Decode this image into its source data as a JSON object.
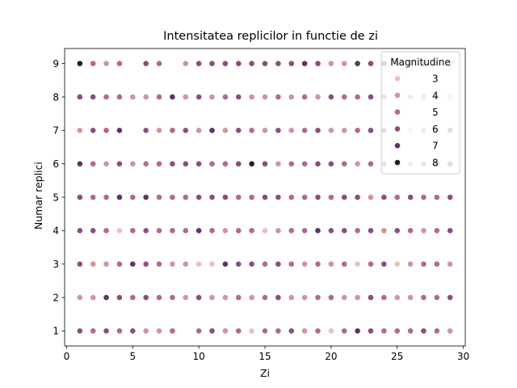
{
  "chart_data": {
    "type": "scatter",
    "title": "Intensitatea replicilor in functie de zi",
    "xlabel": "Zi",
    "ylabel": "Numar replici",
    "xlim": [
      -0.15,
      30.15
    ],
    "ylim": [
      0.55,
      9.45
    ],
    "xticks": [
      0,
      5,
      10,
      15,
      20,
      25,
      30
    ],
    "yticks": [
      1,
      2,
      3,
      4,
      5,
      6,
      7,
      8,
      9
    ],
    "grid": false,
    "legend": {
      "title": "Magnitudine",
      "placement": "top-right",
      "entries": [
        {
          "label": "3",
          "color": "#e8c1c3"
        },
        {
          "label": "4",
          "color": "#d1949f"
        },
        {
          "label": "5",
          "color": "#b4688c"
        },
        {
          "label": "6",
          "color": "#8a4e7e"
        },
        {
          "label": "7",
          "color": "#5d3563"
        },
        {
          "label": "8",
          "color": "#2a1a30"
        }
      ]
    },
    "series": [
      {
        "y": 9,
        "points": [
          [
            1,
            8
          ],
          [
            2,
            5
          ],
          [
            3,
            4
          ],
          [
            4,
            5
          ],
          [
            6,
            6
          ],
          [
            7,
            5
          ],
          [
            9,
            4
          ],
          [
            10,
            6
          ],
          [
            11,
            6
          ],
          [
            12,
            6
          ],
          [
            13,
            6
          ],
          [
            14,
            6
          ],
          [
            15,
            6
          ],
          [
            16,
            6
          ],
          [
            17,
            6
          ],
          [
            18,
            7
          ],
          [
            19,
            6
          ],
          [
            20,
            4
          ],
          [
            21,
            4
          ],
          [
            22,
            7
          ],
          [
            23,
            6
          ],
          [
            24,
            7
          ],
          [
            25,
            6
          ],
          [
            26,
            4
          ],
          [
            27,
            6
          ],
          [
            28,
            4
          ],
          [
            29,
            4
          ]
        ]
      },
      {
        "y": 8,
        "points": [
          [
            1,
            6
          ],
          [
            2,
            6
          ],
          [
            3,
            5
          ],
          [
            4,
            5
          ],
          [
            5,
            4
          ],
          [
            6,
            4
          ],
          [
            7,
            5
          ],
          [
            8,
            7
          ],
          [
            9,
            4
          ],
          [
            10,
            6
          ],
          [
            11,
            4
          ],
          [
            12,
            5
          ],
          [
            13,
            6
          ],
          [
            14,
            4
          ],
          [
            15,
            4
          ],
          [
            16,
            5
          ],
          [
            17,
            4
          ],
          [
            18,
            5
          ],
          [
            19,
            4
          ],
          [
            20,
            6
          ],
          [
            21,
            5
          ],
          [
            22,
            5
          ],
          [
            23,
            6
          ],
          [
            24,
            5
          ],
          [
            25,
            4
          ],
          [
            26,
            4
          ],
          [
            27,
            4
          ],
          [
            28,
            4
          ],
          [
            29,
            3
          ]
        ]
      },
      {
        "y": 7,
        "points": [
          [
            1,
            4
          ],
          [
            2,
            6
          ],
          [
            3,
            5
          ],
          [
            4,
            7
          ],
          [
            6,
            6
          ],
          [
            7,
            4
          ],
          [
            8,
            5
          ],
          [
            9,
            6
          ],
          [
            10,
            4
          ],
          [
            11,
            7
          ],
          [
            12,
            4
          ],
          [
            13,
            6
          ],
          [
            14,
            5
          ],
          [
            15,
            4
          ],
          [
            16,
            6
          ],
          [
            17,
            4
          ],
          [
            18,
            5
          ],
          [
            19,
            6
          ],
          [
            20,
            4
          ],
          [
            21,
            4
          ],
          [
            22,
            5
          ],
          [
            23,
            6
          ],
          [
            24,
            6
          ],
          [
            25,
            3
          ],
          [
            26,
            3
          ],
          [
            27,
            4
          ],
          [
            28,
            4
          ],
          [
            29,
            6
          ]
        ]
      },
      {
        "y": 6,
        "points": [
          [
            1,
            7
          ],
          [
            2,
            5
          ],
          [
            3,
            4
          ],
          [
            4,
            6
          ],
          [
            5,
            4
          ],
          [
            6,
            5
          ],
          [
            7,
            5
          ],
          [
            8,
            6
          ],
          [
            9,
            6
          ],
          [
            10,
            6
          ],
          [
            11,
            5
          ],
          [
            12,
            5
          ],
          [
            13,
            6
          ],
          [
            14,
            8
          ],
          [
            15,
            6
          ],
          [
            16,
            4
          ],
          [
            17,
            5
          ],
          [
            18,
            5
          ],
          [
            19,
            6
          ],
          [
            20,
            6
          ],
          [
            21,
            5
          ],
          [
            22,
            4
          ],
          [
            23,
            5
          ],
          [
            24,
            5
          ],
          [
            25,
            6
          ],
          [
            26,
            4
          ],
          [
            27,
            5
          ],
          [
            28,
            6
          ],
          [
            29,
            6
          ]
        ]
      },
      {
        "y": 5,
        "points": [
          [
            1,
            6
          ],
          [
            2,
            5
          ],
          [
            3,
            5
          ],
          [
            4,
            7
          ],
          [
            5,
            5
          ],
          [
            6,
            7
          ],
          [
            7,
            5
          ],
          [
            8,
            5
          ],
          [
            9,
            5
          ],
          [
            10,
            6
          ],
          [
            11,
            6
          ],
          [
            12,
            6
          ],
          [
            13,
            5
          ],
          [
            14,
            5
          ],
          [
            15,
            6
          ],
          [
            16,
            6
          ],
          [
            17,
            5
          ],
          [
            18,
            5
          ],
          [
            19,
            6
          ],
          [
            20,
            5
          ],
          [
            21,
            6
          ],
          [
            22,
            6
          ],
          [
            23,
            4
          ],
          [
            24,
            6
          ],
          [
            25,
            5
          ],
          [
            26,
            6
          ],
          [
            27,
            5
          ],
          [
            28,
            5
          ],
          [
            29,
            6
          ]
        ]
      },
      {
        "y": 4,
        "points": [
          [
            1,
            6
          ],
          [
            2,
            6
          ],
          [
            3,
            5
          ],
          [
            4,
            3
          ],
          [
            5,
            5
          ],
          [
            6,
            6
          ],
          [
            7,
            5
          ],
          [
            8,
            5
          ],
          [
            9,
            5
          ],
          [
            10,
            7
          ],
          [
            11,
            5
          ],
          [
            12,
            4
          ],
          [
            13,
            5
          ],
          [
            14,
            5
          ],
          [
            15,
            3
          ],
          [
            16,
            4
          ],
          [
            17,
            5
          ],
          [
            18,
            5
          ],
          [
            19,
            7
          ],
          [
            20,
            6
          ],
          [
            21,
            6
          ],
          [
            22,
            5
          ],
          [
            23,
            6
          ],
          [
            24,
            4
          ],
          [
            25,
            6
          ],
          [
            26,
            5
          ],
          [
            27,
            4
          ],
          [
            28,
            5
          ],
          [
            29,
            6
          ]
        ]
      },
      {
        "y": 3,
        "points": [
          [
            1,
            6
          ],
          [
            2,
            4
          ],
          [
            3,
            4
          ],
          [
            4,
            5
          ],
          [
            5,
            7
          ],
          [
            6,
            6
          ],
          [
            7,
            5
          ],
          [
            8,
            4
          ],
          [
            9,
            4
          ],
          [
            10,
            3
          ],
          [
            11,
            3
          ],
          [
            12,
            7
          ],
          [
            13,
            6
          ],
          [
            14,
            6
          ],
          [
            15,
            5
          ],
          [
            16,
            6
          ],
          [
            17,
            5
          ],
          [
            18,
            4
          ],
          [
            19,
            5
          ],
          [
            20,
            4
          ],
          [
            21,
            5
          ],
          [
            22,
            3
          ],
          [
            23,
            5
          ],
          [
            24,
            6
          ],
          [
            25,
            3
          ],
          [
            26,
            4
          ],
          [
            27,
            5
          ],
          [
            28,
            5
          ],
          [
            29,
            4
          ]
        ]
      },
      {
        "y": 2,
        "points": [
          [
            1,
            4
          ],
          [
            2,
            4
          ],
          [
            3,
            7
          ],
          [
            4,
            6
          ],
          [
            5,
            5
          ],
          [
            6,
            6
          ],
          [
            7,
            5
          ],
          [
            8,
            5
          ],
          [
            9,
            4
          ],
          [
            10,
            6
          ],
          [
            11,
            4
          ],
          [
            12,
            4
          ],
          [
            13,
            5
          ],
          [
            14,
            4
          ],
          [
            15,
            5
          ],
          [
            16,
            6
          ],
          [
            17,
            4
          ],
          [
            18,
            4
          ],
          [
            19,
            5
          ],
          [
            20,
            5
          ],
          [
            21,
            4
          ],
          [
            22,
            4
          ],
          [
            23,
            6
          ],
          [
            24,
            5
          ],
          [
            25,
            4
          ],
          [
            26,
            4
          ],
          [
            27,
            5
          ],
          [
            28,
            5
          ],
          [
            29,
            6
          ]
        ]
      },
      {
        "y": 1,
        "points": [
          [
            1,
            6
          ],
          [
            2,
            5
          ],
          [
            3,
            6
          ],
          [
            4,
            5
          ],
          [
            5,
            6
          ],
          [
            6,
            4
          ],
          [
            7,
            4
          ],
          [
            8,
            5
          ],
          [
            10,
            5
          ],
          [
            11,
            6
          ],
          [
            12,
            4
          ],
          [
            13,
            5
          ],
          [
            14,
            3
          ],
          [
            15,
            5
          ],
          [
            16,
            5
          ],
          [
            17,
            6
          ],
          [
            18,
            4
          ],
          [
            19,
            5
          ],
          [
            20,
            3
          ],
          [
            21,
            5
          ],
          [
            22,
            7
          ],
          [
            23,
            6
          ],
          [
            24,
            5
          ],
          [
            25,
            5
          ],
          [
            26,
            5
          ],
          [
            27,
            6
          ],
          [
            28,
            5
          ],
          [
            29,
            4
          ]
        ]
      }
    ]
  }
}
